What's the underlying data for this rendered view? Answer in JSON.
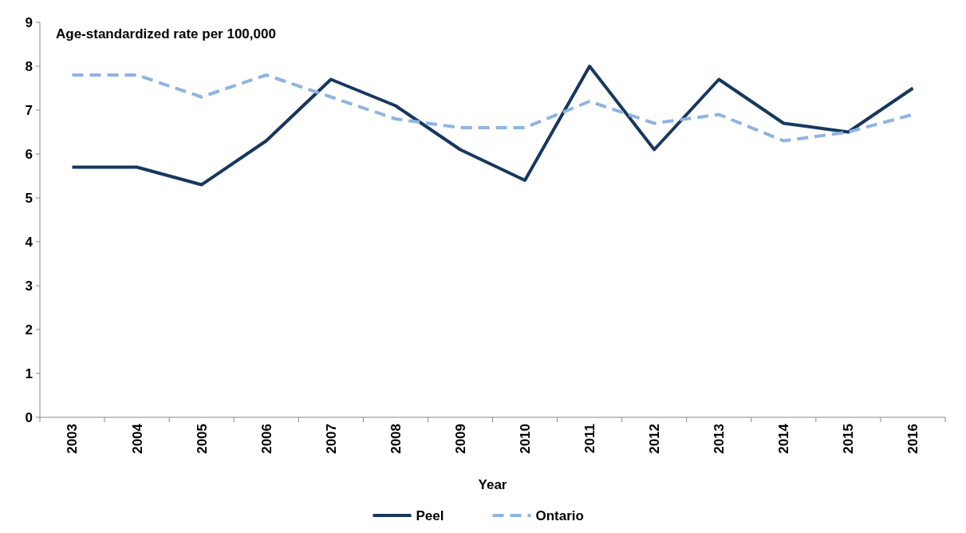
{
  "chart_data": {
    "type": "line",
    "ylabel": "Age-standardized rate per 100,000",
    "xlabel": "Year",
    "categories": [
      "2003",
      "2004",
      "2005",
      "2006",
      "2007",
      "2008",
      "2009",
      "2010",
      "2011",
      "2012",
      "2013",
      "2014",
      "2015",
      "2016"
    ],
    "series": [
      {
        "name": "Peel",
        "color": "#17375e",
        "line_style": "solid",
        "values": [
          5.7,
          5.7,
          5.3,
          6.3,
          7.7,
          7.1,
          6.1,
          5.4,
          8.0,
          6.1,
          7.7,
          6.7,
          6.5,
          7.5
        ]
      },
      {
        "name": "Ontario",
        "color": "#8db4e2",
        "line_style": "dashed",
        "values": [
          7.8,
          7.8,
          7.3,
          7.8,
          7.3,
          6.8,
          6.6,
          6.6,
          7.2,
          6.7,
          6.9,
          6.3,
          6.5,
          6.9
        ]
      }
    ],
    "ylim": [
      0,
      9
    ],
    "yticks": [
      0,
      1,
      2,
      3,
      4,
      5,
      6,
      7,
      8,
      9
    ],
    "grid": false,
    "legend": "bottom",
    "marker": "none"
  }
}
